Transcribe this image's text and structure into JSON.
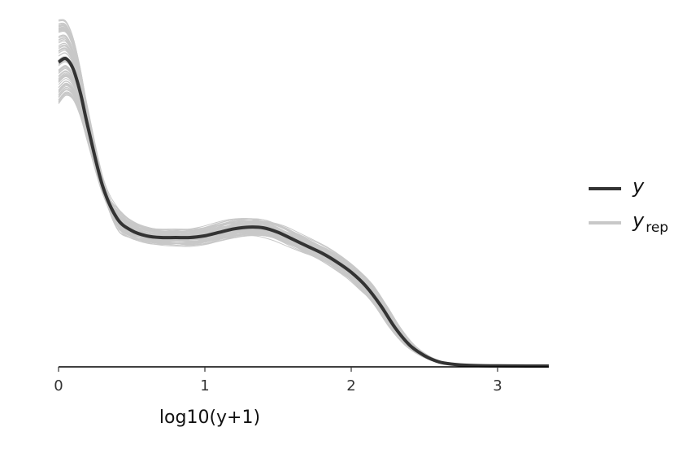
{
  "chart_data": {
    "type": "line",
    "title": "",
    "xlabel": "log10(y+1)",
    "ylabel": "",
    "xlim": [
      0,
      3.35
    ],
    "ylim": [
      0,
      1.0
    ],
    "x_ticks": [
      "0",
      "1",
      "2",
      "3"
    ],
    "x_tick_values": [
      0,
      1,
      2,
      3
    ],
    "grid": false,
    "legend_position": "right",
    "colors": {
      "y": "#333333",
      "yrep": "#c8c8c8",
      "axis": "#000000"
    },
    "series": [
      {
        "name": "y",
        "x": [
          0,
          0.05,
          0.1,
          0.15,
          0.2,
          0.3,
          0.4,
          0.5,
          0.6,
          0.7,
          0.8,
          0.9,
          1.0,
          1.1,
          1.2,
          1.3,
          1.4,
          1.5,
          1.6,
          1.7,
          1.8,
          1.9,
          2.0,
          2.1,
          2.2,
          2.3,
          2.4,
          2.5,
          2.6,
          2.7,
          2.8,
          2.9,
          3.0,
          3.1,
          3.2,
          3.35
        ],
        "values": [
          0.875,
          0.885,
          0.855,
          0.785,
          0.69,
          0.52,
          0.425,
          0.39,
          0.375,
          0.37,
          0.37,
          0.37,
          0.375,
          0.385,
          0.395,
          0.4,
          0.398,
          0.385,
          0.365,
          0.345,
          0.325,
          0.3,
          0.27,
          0.23,
          0.175,
          0.11,
          0.06,
          0.03,
          0.012,
          0.005,
          0.002,
          0.001,
          0.0005,
          0.0003,
          0.0001,
          0
        ]
      }
    ],
    "replicates": {
      "name": "yrep",
      "count": 100,
      "x_range": [
        0,
        3.35
      ],
      "y_range": [
        0,
        1.0
      ]
    }
  },
  "legend": {
    "items": [
      {
        "label": "y",
        "subscript": "",
        "color": "#333333"
      },
      {
        "label": "y",
        "subscript": "rep",
        "color": "#c8c8c8"
      }
    ]
  }
}
